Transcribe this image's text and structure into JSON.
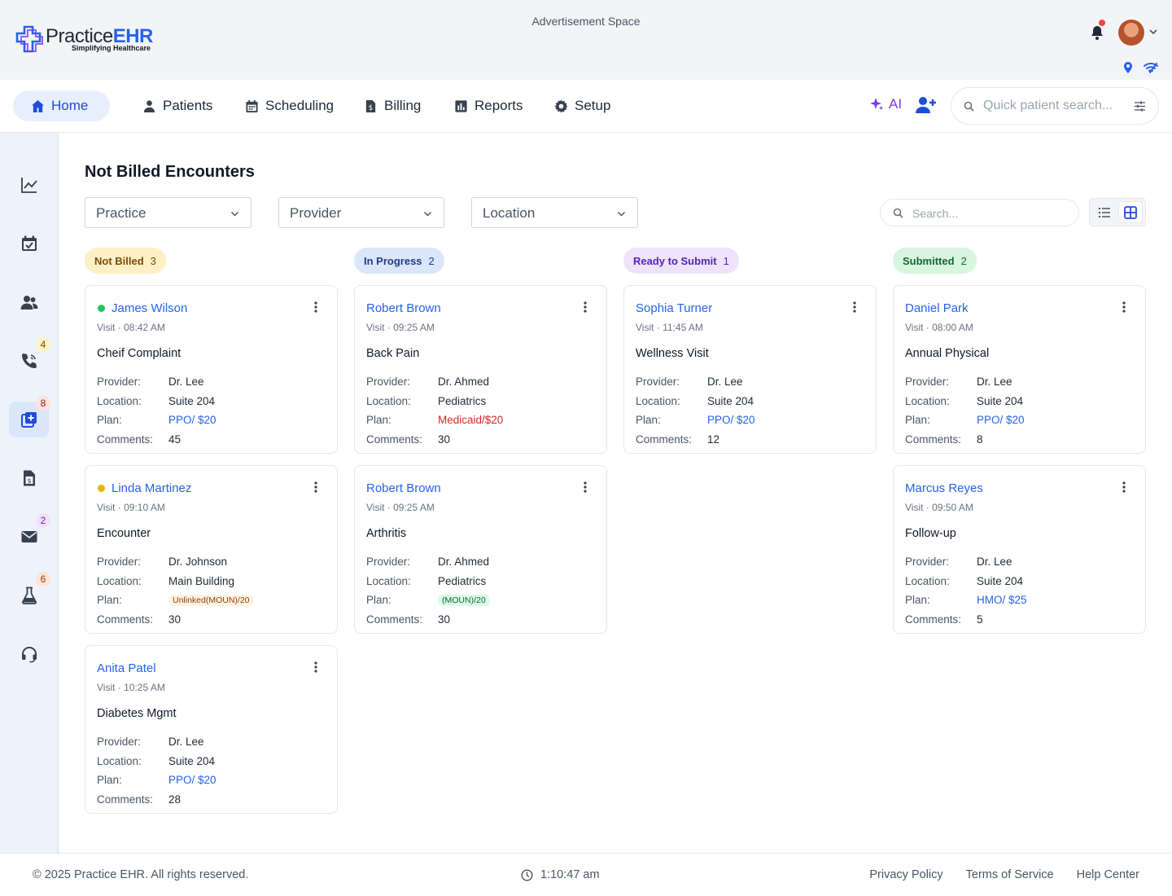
{
  "brand": {
    "name_part1": "Practice",
    "name_part2": "EHR",
    "tagline": "Simplifying Healthcare"
  },
  "header": {
    "ad_text": "Advertisement Space"
  },
  "nav": {
    "items": [
      {
        "label": "Home",
        "icon": "home-icon"
      },
      {
        "label": "Patients",
        "icon": "patient-icon"
      },
      {
        "label": "Scheduling",
        "icon": "calendar-icon"
      },
      {
        "label": "Billing",
        "icon": "billing-icon"
      },
      {
        "label": "Reports",
        "icon": "chart-icon"
      },
      {
        "label": "Setup",
        "icon": "gear-icon"
      }
    ],
    "ai_label": "AI",
    "quick_search_placeholder": "Quick patient search..."
  },
  "sidebar": {
    "items": [
      {
        "icon": "analytics-icon",
        "badge": ""
      },
      {
        "icon": "calendar-check-icon",
        "badge": ""
      },
      {
        "icon": "users-icon",
        "badge": ""
      },
      {
        "icon": "phone-icon",
        "badge": "4"
      },
      {
        "icon": "encounter-icon",
        "badge": "8"
      },
      {
        "icon": "invoice-icon",
        "badge": ""
      },
      {
        "icon": "mail-icon",
        "badge": "2"
      },
      {
        "icon": "lab-icon",
        "badge": "6"
      },
      {
        "icon": "support-icon",
        "badge": ""
      }
    ]
  },
  "page": {
    "title": "Not Billed Encounters",
    "filters": {
      "practice": "Practice",
      "provider": "Provider",
      "location": "Location"
    },
    "search_placeholder": "Search...",
    "labels": {
      "provider": "Provider:",
      "location": "Location:",
      "plan": "Plan:",
      "comments": "Comments:"
    }
  },
  "columns": [
    {
      "label": "Not Billed",
      "count": "3",
      "bg": "#fdf0c6",
      "fg": "#7a4a05",
      "cards": [
        {
          "name": "James Wilson",
          "status_dot": "#22c55e",
          "visit": "Visit · 08:42 AM",
          "title": "Cheif Complaint",
          "provider": "Dr. Lee",
          "location": "Suite 204",
          "plan": "PPO/ $20",
          "plan_style": "blue",
          "comments": "45"
        },
        {
          "name": "Linda Martinez",
          "status_dot": "#eab308",
          "visit": "Visit · 09:10 AM",
          "title": "Encounter",
          "provider": "Dr. Johnson",
          "location": "Main Building",
          "plan": "Unlinked(MOUN)/20",
          "plan_style": "unlinked",
          "comments": "30"
        },
        {
          "name": "Anita Patel",
          "status_dot": "",
          "visit": "Visit · 10:25 AM",
          "title": "Diabetes Mgmt",
          "provider": "Dr. Lee",
          "location": "Suite 204",
          "plan": "PPO/ $20",
          "plan_style": "blue",
          "comments": "28"
        }
      ]
    },
    {
      "label": "In Progress",
      "count": "2",
      "bg": "#dbe6fb",
      "fg": "#1e3a8a",
      "cards": [
        {
          "name": "Robert Brown",
          "status_dot": "",
          "visit": "Visit · 09:25 AM",
          "title": "Back Pain",
          "provider": "Dr. Ahmed",
          "location": "Pediatrics",
          "plan": "Medicaid/$20",
          "plan_style": "red",
          "comments": "30"
        },
        {
          "name": "Robert Brown",
          "status_dot": "",
          "visit": "Visit · 09:25 AM",
          "title": "Arthritis",
          "provider": "Dr. Ahmed",
          "location": "Pediatrics",
          "plan": "(MOUN)/20",
          "plan_style": "moun",
          "comments": "30"
        }
      ]
    },
    {
      "label": "Ready to Submit",
      "count": "1",
      "bg": "#ede4fb",
      "fg": "#5b21b6",
      "cards": [
        {
          "name": "Sophia Turner",
          "status_dot": "",
          "visit": "Visit · 11:45 AM",
          "title": "Wellness Visit",
          "provider": "Dr. Lee",
          "location": "Suite 204",
          "plan": "PPO/ $20",
          "plan_style": "blue",
          "comments": "12"
        }
      ]
    },
    {
      "label": "Submitted",
      "count": "2",
      "bg": "#d8f5e0",
      "fg": "#166534",
      "cards": [
        {
          "name": "Daniel Park",
          "status_dot": "",
          "visit": "Visit · 08:00 AM",
          "title": "Annual Physical",
          "provider": "Dr. Lee",
          "location": "Suite 204",
          "plan": "PPO/ $20",
          "plan_style": "blue",
          "comments": "8"
        },
        {
          "name": "Marcus Reyes",
          "status_dot": "",
          "visit": "Visit · 09:50 AM",
          "title": "Follow-up",
          "provider": "Dr. Lee",
          "location": "Suite 204",
          "plan": "HMO/ $25",
          "plan_style": "blue",
          "comments": "5"
        }
      ]
    }
  ],
  "footer": {
    "copyright": "© 2025 Practice EHR. All rights reserved.",
    "time": "1:10:47 am",
    "links": [
      "Privacy Policy",
      "Terms of Service",
      "Help Center"
    ]
  }
}
